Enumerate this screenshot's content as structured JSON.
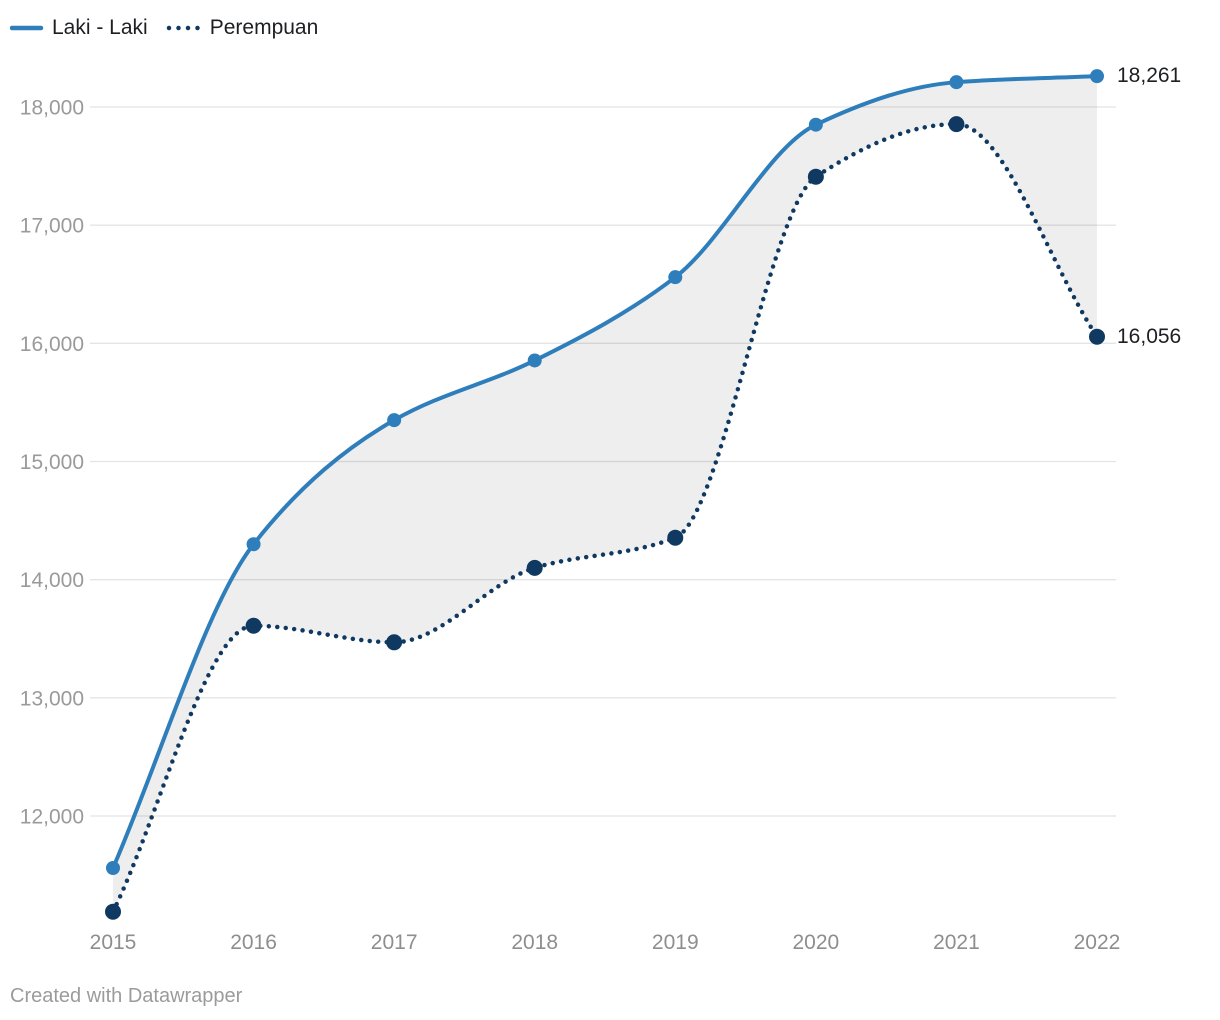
{
  "chart_data": {
    "type": "line",
    "title": "",
    "xlabel": "",
    "ylabel": "",
    "categories": [
      "2015",
      "2016",
      "2017",
      "2018",
      "2019",
      "2020",
      "2021",
      "2022"
    ],
    "series": [
      {
        "name": "Laki - Laki",
        "color": "#2f7ebc",
        "line_style": "solid",
        "values": [
          11560,
          14300,
          15350,
          15855,
          16560,
          17850,
          18210,
          18261
        ],
        "end_label": "18,261"
      },
      {
        "name": "Perempuan",
        "color": "#103962",
        "line_style": "dotted",
        "values": [
          11190,
          13610,
          13470,
          14100,
          14355,
          17410,
          17855,
          16056
        ],
        "end_label": "16,056"
      }
    ],
    "y_ticks": [
      12000,
      13000,
      14000,
      15000,
      16000,
      17000,
      18000
    ],
    "ylim": [
      11100,
      18450
    ],
    "grid": "horizontal",
    "legend_position": "top-left",
    "area_between_series": true,
    "colors": {
      "grid_line": "#e4e4e4",
      "y_tick_text": "#9a9a9a",
      "x_tick_text": "#8e8e8e",
      "value_label_text": "#1d1f22",
      "gap_area_fill": "rgba(0,0,0,0.065)"
    }
  },
  "footer": {
    "text": "Created with Datawrapper"
  }
}
